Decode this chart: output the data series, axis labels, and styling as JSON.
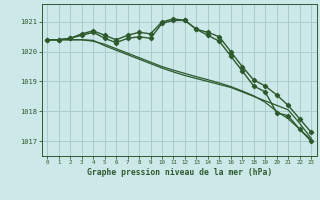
{
  "bg_color": "#cce8e8",
  "grid_color": "#aacccc",
  "line_color": "#2d5a2d",
  "xlabel": "Graphe pression niveau de la mer (hPa)",
  "ylim": [
    1016.5,
    1021.6
  ],
  "xlim": [
    -0.5,
    23.5
  ],
  "yticks": [
    1017,
    1018,
    1019,
    1020,
    1021
  ],
  "xticks": [
    0,
    1,
    2,
    3,
    4,
    5,
    6,
    7,
    8,
    9,
    10,
    11,
    12,
    13,
    14,
    15,
    16,
    17,
    18,
    19,
    20,
    21,
    22,
    23
  ],
  "series": [
    {
      "x": [
        0,
        1,
        2,
        3,
        4,
        5,
        6,
        7,
        8,
        9,
        10,
        11,
        12,
        13,
        14,
        15,
        16,
        17,
        18,
        19,
        20,
        21,
        22,
        23
      ],
      "y": [
        1020.4,
        1020.4,
        1020.45,
        1020.55,
        1020.65,
        1020.45,
        1020.3,
        1020.45,
        1020.5,
        1020.45,
        1020.95,
        1021.05,
        1021.05,
        1020.75,
        1020.55,
        1020.35,
        1019.85,
        1019.35,
        1018.85,
        1018.65,
        1017.95,
        1017.85,
        1017.4,
        1017.0
      ],
      "marker": "D",
      "markersize": 2.2,
      "linewidth": 1.0
    },
    {
      "x": [
        0,
        1,
        2,
        3,
        4,
        5,
        6,
        7,
        8,
        9,
        10,
        11,
        12,
        13,
        14,
        15,
        16,
        17,
        18,
        19,
        20,
        21,
        22,
        23
      ],
      "y": [
        1020.4,
        1020.4,
        1020.45,
        1020.6,
        1020.7,
        1020.55,
        1020.4,
        1020.55,
        1020.65,
        1020.6,
        1021.0,
        1021.1,
        1021.05,
        1020.75,
        1020.65,
        1020.5,
        1020.0,
        1019.5,
        1019.05,
        1018.85,
        1018.55,
        1018.2,
        1017.75,
        1017.3
      ],
      "marker": "D",
      "markersize": 2.2,
      "linewidth": 1.0
    },
    {
      "x": [
        0,
        1,
        2,
        3,
        4,
        5,
        6,
        7,
        8,
        9,
        10,
        11,
        12,
        13,
        14,
        15,
        16,
        17,
        18,
        19,
        20,
        21,
        22,
        23
      ],
      "y": [
        1020.4,
        1020.4,
        1020.4,
        1020.4,
        1020.38,
        1020.2,
        1020.05,
        1019.9,
        1019.75,
        1019.6,
        1019.45,
        1019.32,
        1019.2,
        1019.1,
        1019.0,
        1018.9,
        1018.8,
        1018.65,
        1018.5,
        1018.35,
        1018.2,
        1018.05,
        1017.6,
        1017.1
      ],
      "marker": null,
      "markersize": 0,
      "linewidth": 0.9
    },
    {
      "x": [
        0,
        1,
        2,
        3,
        4,
        5,
        6,
        7,
        8,
        9,
        10,
        11,
        12,
        13,
        14,
        15,
        16,
        17,
        18,
        19,
        20,
        21,
        22,
        23
      ],
      "y": [
        1020.4,
        1020.4,
        1020.4,
        1020.4,
        1020.35,
        1020.25,
        1020.1,
        1019.95,
        1019.8,
        1019.65,
        1019.5,
        1019.38,
        1019.27,
        1019.16,
        1019.06,
        1018.95,
        1018.83,
        1018.68,
        1018.52,
        1018.3,
        1018.0,
        1017.75,
        1017.4,
        1017.05
      ],
      "marker": null,
      "markersize": 0,
      "linewidth": 0.9
    }
  ]
}
